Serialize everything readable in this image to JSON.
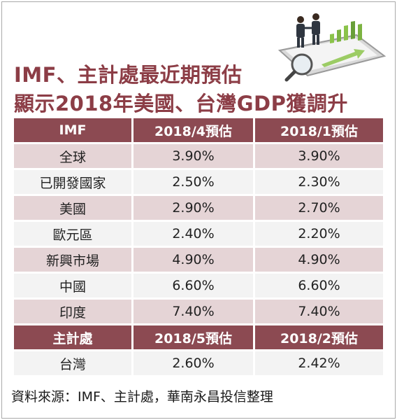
{
  "title": {
    "line1": "IMF、主計處最近期預估",
    "line2": "顯示2018年美國、台灣GDP獲調升"
  },
  "chart_data": {
    "type": "table",
    "sections": [
      {
        "header": [
          "IMF",
          "2018/4預估",
          "2018/1預估"
        ],
        "rows": [
          [
            "全球",
            "3.90%",
            "3.90%"
          ],
          [
            "已開發國家",
            "2.50%",
            "2.30%"
          ],
          [
            "美國",
            "2.90%",
            "2.70%"
          ],
          [
            "歐元區",
            "2.40%",
            "2.20%"
          ],
          [
            "新興市場",
            "4.90%",
            "4.90%"
          ],
          [
            "中國",
            "6.60%",
            "6.60%"
          ],
          [
            "印度",
            "7.40%",
            "7.40%"
          ]
        ]
      },
      {
        "header": [
          "主計處",
          "2018/5預估",
          "2018/2預估"
        ],
        "rows": [
          [
            "台灣",
            "2.60%",
            "2.42%"
          ]
        ]
      }
    ]
  },
  "source": "資料來源：IMF、主計處，華南永昌投信整理",
  "colors": {
    "title": "#8c3d46",
    "header_bg": "#8c4a52",
    "row_pink": "#e5d4d6",
    "row_gray": "#f3f3f3"
  },
  "illustration_icon": "businessmen-growth-chart-magnifier-icon"
}
